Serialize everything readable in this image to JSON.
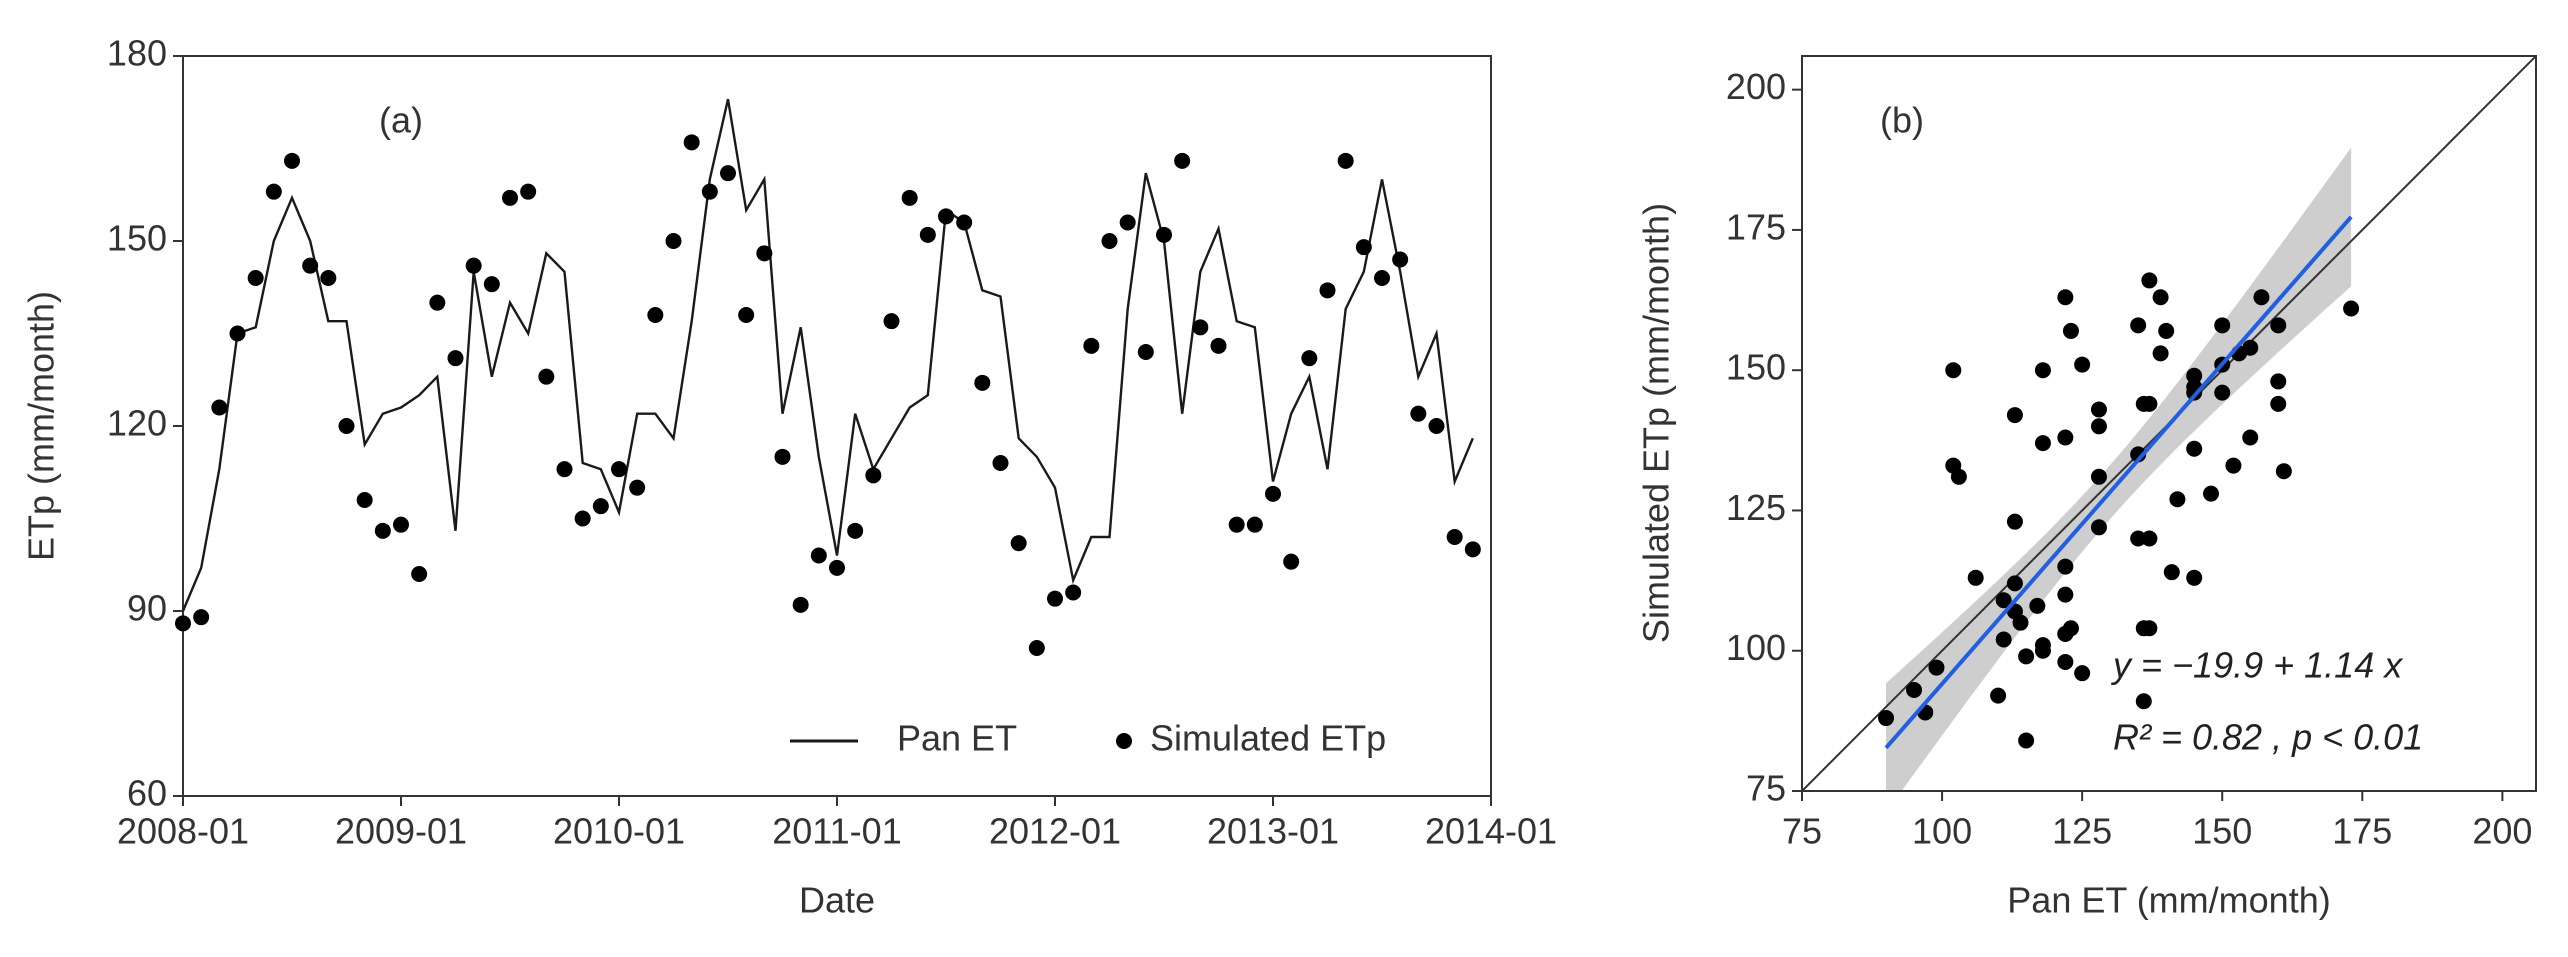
{
  "chart_data": [
    {
      "type": "line",
      "x": [
        "2008-01",
        "2008-02",
        "2008-03",
        "2008-04",
        "2008-05",
        "2008-06",
        "2008-07",
        "2008-08",
        "2008-09",
        "2008-10",
        "2008-11",
        "2008-12",
        "2009-01",
        "2009-02",
        "2009-03",
        "2009-04",
        "2009-05",
        "2009-06",
        "2009-07",
        "2009-08",
        "2009-09",
        "2009-10",
        "2009-11",
        "2009-12",
        "2010-01",
        "2010-02",
        "2010-03",
        "2010-04",
        "2010-05",
        "2010-06",
        "2010-07",
        "2010-08",
        "2010-09",
        "2010-10",
        "2010-11",
        "2010-12",
        "2011-01",
        "2011-02",
        "2011-03",
        "2011-04",
        "2011-05",
        "2011-06",
        "2011-07",
        "2011-08",
        "2011-09",
        "2011-10",
        "2011-11",
        "2011-12",
        "2012-01",
        "2012-02",
        "2012-03",
        "2012-04",
        "2012-05",
        "2012-06",
        "2012-07",
        "2012-08",
        "2012-09",
        "2012-10",
        "2012-11",
        "2012-12",
        "2013-01",
        "2013-02",
        "2013-03",
        "2013-04",
        "2013-05",
        "2013-06",
        "2013-07",
        "2013-08",
        "2013-09",
        "2013-10",
        "2013-11",
        "2013-12"
      ],
      "series": [
        {
          "name": "Pan ET",
          "kind": "line",
          "color": "#1a1a1a",
          "values": [
            90,
            97,
            113,
            135,
            136,
            150,
            157,
            150,
            137,
            137,
            117,
            122,
            123,
            125,
            128,
            103,
            145,
            128,
            140,
            135,
            148,
            145,
            114,
            113,
            106,
            122,
            122,
            118,
            137,
            160,
            173,
            155,
            160,
            122,
            136,
            115,
            99,
            122,
            113,
            118,
            123,
            125,
            155,
            153,
            142,
            141,
            118,
            115,
            110,
            95,
            102,
            102,
            139,
            161,
            150,
            122,
            145,
            152,
            137,
            136,
            111,
            122,
            128,
            113,
            139,
            145,
            160,
            145,
            128,
            135,
            111,
            118
          ]
        },
        {
          "name": "Simulated ETp",
          "kind": "points",
          "color": "#000000",
          "values": [
            88,
            89,
            123,
            135,
            144,
            158,
            163,
            146,
            144,
            120,
            108,
            103,
            104,
            96,
            140,
            131,
            146,
            143,
            157,
            158,
            128,
            113,
            105,
            107,
            113,
            110,
            138,
            150,
            166,
            158,
            161,
            138,
            148,
            115,
            91,
            99,
            97,
            103,
            112,
            137,
            157,
            151,
            154,
            153,
            127,
            114,
            101,
            84,
            92,
            93,
            133,
            150,
            153,
            132,
            151,
            163,
            136,
            133,
            104,
            104,
            109,
            98,
            131,
            142,
            163,
            149,
            144,
            147,
            122,
            120,
            102,
            100
          ]
        }
      ],
      "panel_label": "(a)",
      "x_label": "Date",
      "y_label": "ETp (mm/month)",
      "xlim": [
        "2008-01",
        "2014-01"
      ],
      "xticks": [
        "2008-01",
        "2009-01",
        "2010-01",
        "2011-01",
        "2012-01",
        "2013-01",
        "2014-01"
      ],
      "ylim": [
        60,
        180
      ],
      "yticks": [
        60,
        90,
        120,
        150,
        180
      ],
      "legend": "bottom-right"
    },
    {
      "type": "scatter",
      "x": [
        90,
        97,
        113,
        135,
        136,
        150,
        157,
        150,
        137,
        137,
        117,
        122,
        123,
        125,
        128,
        103,
        145,
        128,
        140,
        135,
        148,
        145,
        114,
        113,
        106,
        122,
        122,
        118,
        137,
        160,
        173,
        155,
        160,
        122,
        136,
        115,
        99,
        122,
        113,
        118,
        123,
        125,
        155,
        153,
        142,
        141,
        118,
        115,
        110,
        95,
        102,
        102,
        139,
        161,
        150,
        122,
        145,
        152,
        137,
        136,
        111,
        122,
        128,
        113,
        139,
        145,
        160,
        145,
        128,
        135,
        111,
        118
      ],
      "y": [
        88,
        89,
        123,
        135,
        144,
        158,
        163,
        146,
        144,
        120,
        108,
        103,
        104,
        96,
        140,
        131,
        146,
        143,
        157,
        158,
        128,
        113,
        105,
        107,
        113,
        110,
        138,
        150,
        166,
        158,
        161,
        138,
        148,
        115,
        91,
        99,
        97,
        103,
        112,
        137,
        157,
        151,
        154,
        153,
        127,
        114,
        101,
        84,
        92,
        93,
        133,
        150,
        153,
        132,
        151,
        163,
        136,
        133,
        104,
        104,
        109,
        98,
        131,
        142,
        163,
        149,
        144,
        147,
        122,
        120,
        102,
        100
      ],
      "color": "#000000",
      "fit": {
        "intercept": -19.9,
        "slope": 1.14,
        "color": "#1f5fe0",
        "band_color": "#bdbdbd"
      },
      "annotations": [
        "y = −19.9 + 1.14 x",
        "R² = 0.82 , p < 0.01"
      ],
      "panel_label": "(b)",
      "x_label": "Pan ET (mm/month)",
      "y_label": "Simulated ETp (mm/month)",
      "xlim": [
        75,
        206
      ],
      "xticks": [
        75,
        100,
        125,
        150,
        175,
        200
      ],
      "ylim": [
        75,
        206
      ],
      "yticks": [
        75,
        100,
        125,
        150,
        175,
        200
      ]
    }
  ]
}
